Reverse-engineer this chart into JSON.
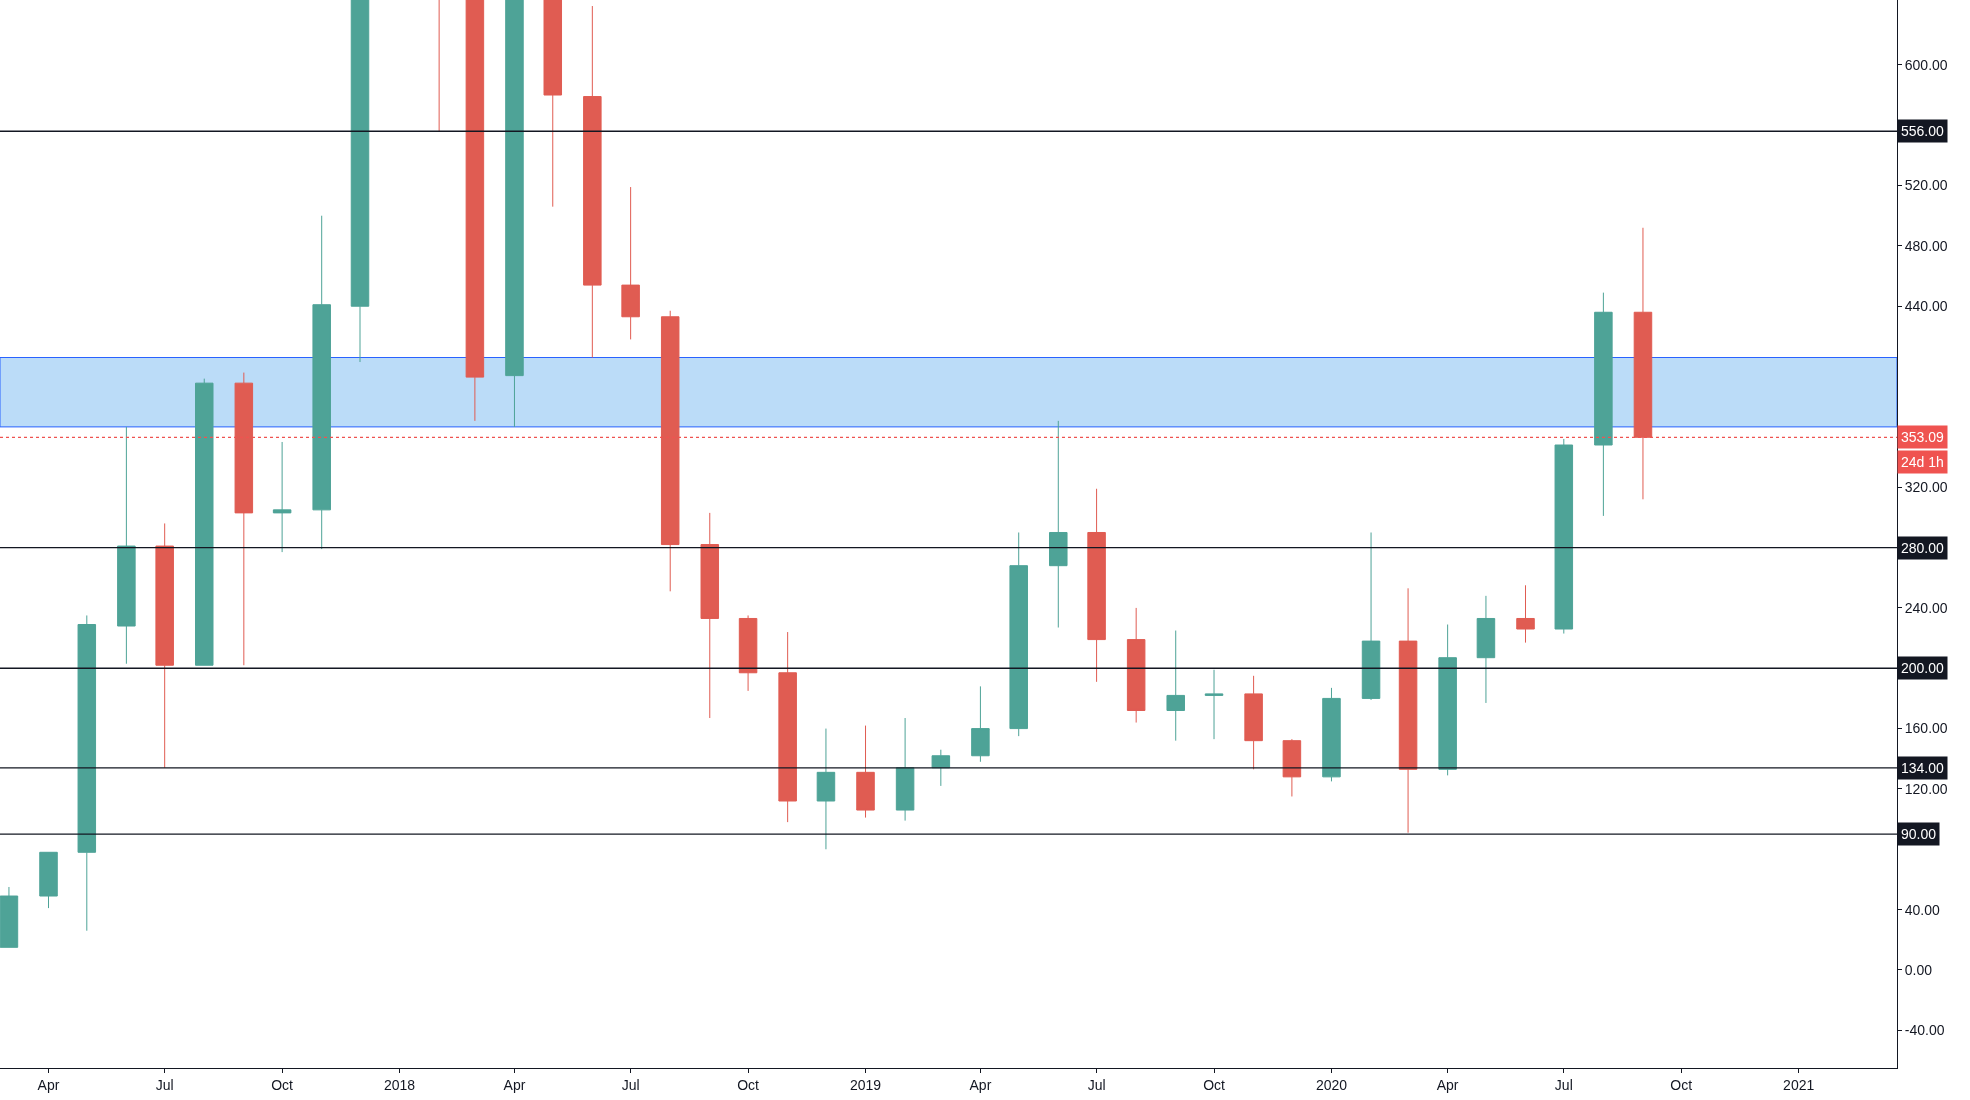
{
  "chart_data": {
    "type": "candlestick",
    "x": [
      "2017-03",
      "2017-04",
      "2017-05",
      "2017-06",
      "2017-07",
      "2017-08",
      "2017-09",
      "2017-10",
      "2017-11",
      "2017-12",
      "2018-02",
      "2018-03",
      "2018-04",
      "2018-05",
      "2018-06",
      "2018-07",
      "2018-08",
      "2018-09",
      "2018-10",
      "2018-11",
      "2018-12",
      "2019-01",
      "2019-02",
      "2019-03",
      "2019-04",
      "2019-05",
      "2019-06",
      "2019-07",
      "2019-08",
      "2019-09",
      "2019-10",
      "2019-11",
      "2019-12",
      "2020-01",
      "2020-02",
      "2020-03",
      "2020-04",
      "2020-05",
      "2020-06",
      "2020-07",
      "2020-08",
      "2020-09"
    ],
    "ohlc": [
      [
        15,
        55,
        15,
        49
      ],
      [
        49,
        78,
        41,
        78
      ],
      [
        78,
        235,
        26,
        229
      ],
      [
        228,
        360,
        203,
        281
      ],
      [
        281,
        296,
        134,
        202
      ],
      [
        202,
        392,
        202,
        389
      ],
      [
        389,
        396,
        202,
        303
      ],
      [
        303,
        350,
        277,
        305
      ],
      [
        305,
        500,
        279,
        441
      ],
      [
        440,
        880,
        403,
        756
      ],
      [
        1118,
        1161,
        556,
        855
      ],
      [
        855,
        880,
        364,
        393
      ],
      [
        394,
        708,
        360,
        670
      ],
      [
        670,
        838,
        506,
        580
      ],
      [
        579,
        639,
        406,
        454
      ],
      [
        454,
        519,
        418,
        433
      ],
      [
        433,
        437,
        251,
        282
      ],
      [
        282,
        303,
        167,
        233
      ],
      [
        233,
        235,
        185,
        197
      ],
      [
        197,
        224,
        98,
        112
      ],
      [
        112,
        160,
        80,
        131
      ],
      [
        131,
        162,
        101,
        106
      ],
      [
        106,
        167,
        99,
        134
      ],
      [
        134,
        146,
        122,
        142
      ],
      [
        142,
        188,
        138,
        160
      ],
      [
        160,
        290,
        155,
        268
      ],
      [
        268,
        364,
        227,
        290
      ],
      [
        290,
        319,
        191,
        219
      ],
      [
        219,
        240,
        164,
        172
      ],
      [
        172,
        225,
        152,
        182
      ],
      [
        182,
        199,
        153,
        183
      ],
      [
        183,
        195,
        133,
        152
      ],
      [
        152,
        153,
        115,
        128
      ],
      [
        128,
        187,
        125,
        180
      ],
      [
        180,
        290,
        179,
        218
      ],
      [
        218,
        253,
        91,
        133
      ],
      [
        133,
        229,
        129,
        207
      ],
      [
        207,
        248,
        177,
        233
      ],
      [
        233,
        255,
        217,
        226
      ],
      [
        226,
        352,
        223,
        348
      ],
      [
        348,
        449,
        301,
        436
      ],
      [
        436,
        492,
        312,
        353.09
      ]
    ],
    "colors": [
      "#4ea397",
      "#4ea397",
      "#4ea397",
      "#4ea397",
      "#e05c52",
      "#4ea397",
      "#e05c52",
      "#4ea397",
      "#4ea397",
      "#4ea397",
      "#e05c52",
      "#e05c52",
      "#4ea397",
      "#e05c52",
      "#e05c52",
      "#e05c52",
      "#e05c52",
      "#e05c52",
      "#e05c52",
      "#e05c52",
      "#4ea397",
      "#e05c52",
      "#4ea397",
      "#4ea397",
      "#4ea397",
      "#4ea397",
      "#4ea397",
      "#e05c52",
      "#e05c52",
      "#4ea397",
      "#4ea397",
      "#e05c52",
      "#e05c52",
      "#4ea397",
      "#4ea397",
      "#e05c52",
      "#4ea397",
      "#4ea397",
      "#e05c52",
      "#4ea397",
      "#4ea397",
      "#e05c52"
    ],
    "xlim": [
      "2017-02-22",
      "2021-03-19"
    ],
    "xticks": [
      {
        "value": "2017-04-01",
        "label": "Apr"
      },
      {
        "value": "2017-07-01",
        "label": "Jul"
      },
      {
        "value": "2017-10-01",
        "label": "Oct"
      },
      {
        "value": "2018-01-01",
        "label": "2018"
      },
      {
        "value": "2018-04-01",
        "label": "Apr"
      },
      {
        "value": "2018-07-01",
        "label": "Jul"
      },
      {
        "value": "2018-10-01",
        "label": "Oct"
      },
      {
        "value": "2019-01-01",
        "label": "2019"
      },
      {
        "value": "2019-04-01",
        "label": "Apr"
      },
      {
        "value": "2019-07-01",
        "label": "Jul"
      },
      {
        "value": "2019-10-01",
        "label": "Oct"
      },
      {
        "value": "2020-01-01",
        "label": "2020"
      },
      {
        "value": "2020-04-01",
        "label": "Apr"
      },
      {
        "value": "2020-07-01",
        "label": "Jul"
      },
      {
        "value": "2020-10-01",
        "label": "Oct"
      },
      {
        "value": "2021-01-01",
        "label": "2021"
      }
    ],
    "ylim": [
      -65,
      643
    ],
    "yticks": [
      {
        "value": -40,
        "label": "-40.00"
      },
      {
        "value": 0,
        "label": "0.00"
      },
      {
        "value": 40,
        "label": "40.00"
      },
      {
        "value": 120,
        "label": "120.00"
      },
      {
        "value": 160,
        "label": "160.00"
      },
      {
        "value": 240,
        "label": "240.00"
      },
      {
        "value": 320,
        "label": "320.00"
      },
      {
        "value": 440,
        "label": "440.00"
      },
      {
        "value": 480,
        "label": "480.00"
      },
      {
        "value": 520,
        "label": "520.00"
      },
      {
        "value": 600,
        "label": "600.00"
      }
    ],
    "ref_lines": [
      {
        "axis": "y",
        "value": 556,
        "label": "556.00",
        "color": "#131722"
      },
      {
        "axis": "y",
        "value": 280,
        "label": "280.00",
        "color": "#131722"
      },
      {
        "axis": "y",
        "value": 200,
        "label": "200.00",
        "color": "#131722"
      },
      {
        "axis": "y",
        "value": 134,
        "label": "134.00",
        "color": "#131722"
      },
      {
        "axis": "y",
        "value": 90,
        "label": "90.00",
        "color": "#131722"
      },
      {
        "axis": "y",
        "value": 353.09,
        "label": "353.09",
        "color": "#ef5350",
        "line_style": "dotted"
      }
    ],
    "bands": [
      {
        "axis": "y",
        "from": 360,
        "to": 406,
        "color": "#bbdcf8"
      }
    ],
    "annotations": [
      "24d 1h"
    ],
    "grid": false
  }
}
